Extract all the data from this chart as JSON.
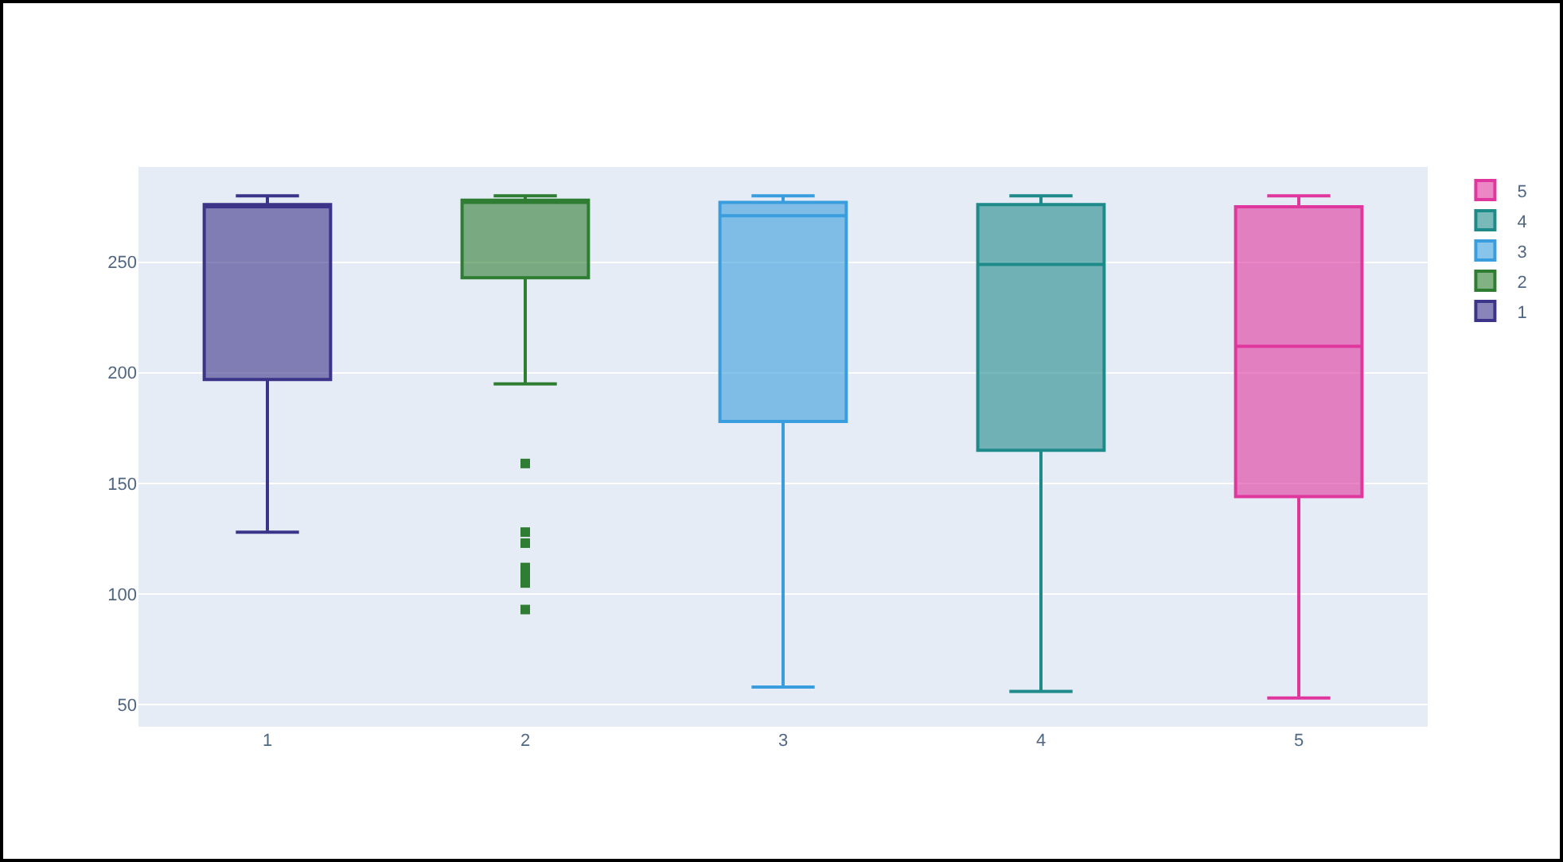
{
  "chart_data": {
    "type": "box",
    "categories": [
      "1",
      "2",
      "3",
      "4",
      "5"
    ],
    "ylim": [
      40,
      293
    ],
    "yticks": [
      50,
      100,
      150,
      200,
      250
    ],
    "grid": "y",
    "legend": "top right",
    "series": [
      {
        "name": "1",
        "color": "#3b3488",
        "boxes": [
          {
            "low": 128,
            "q1": 197,
            "median": 275,
            "q3": 276,
            "high": 280
          },
          null,
          null,
          null,
          null
        ]
      },
      {
        "name": "2",
        "color": "#2e7d32",
        "boxes": [
          null,
          {
            "low": 195,
            "q1": 243,
            "median": 277,
            "q3": 278,
            "high": 280,
            "outliers": [
              159,
              128,
              123,
              112,
              108,
              105,
              93
            ]
          },
          null,
          null,
          null
        ]
      },
      {
        "name": "3",
        "color": "#3a9ede",
        "boxes": [
          null,
          null,
          {
            "low": 58,
            "q1": 178,
            "median": 271,
            "q3": 277,
            "high": 280
          },
          null,
          null
        ]
      },
      {
        "name": "4",
        "color": "#1f8a8a",
        "boxes": [
          null,
          null,
          null,
          {
            "low": 56,
            "q1": 165,
            "median": 249,
            "q3": 276,
            "high": 280
          },
          null
        ]
      },
      {
        "name": "5",
        "color": "#e0379e",
        "boxes": [
          null,
          null,
          null,
          null,
          {
            "low": 53,
            "q1": 144,
            "median": 212,
            "q3": 275,
            "high": 280
          }
        ]
      }
    ]
  }
}
